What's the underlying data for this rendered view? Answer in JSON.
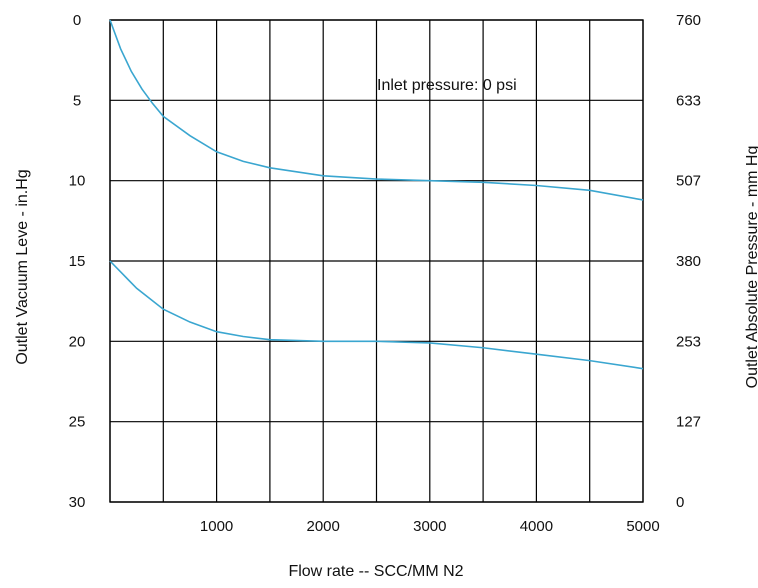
{
  "chart_data": {
    "type": "line",
    "title": "",
    "annotation": "Inlet pressure: 0 psi",
    "xlabel": "Flow rate -- SCC/MM N2",
    "ylabel_left": "Outlet Vacuum Leve - in.Hg",
    "ylabel_right": "Outlet Absolute Pressure - mm Hg",
    "x_range": [
      0,
      5000
    ],
    "x_tick_values": [
      1000,
      2000,
      3000,
      4000,
      5000
    ],
    "x_tick_labels": [
      "1000",
      "2000",
      "3000",
      "4000",
      "5000"
    ],
    "x_grid_values": [
      0,
      500,
      1000,
      1500,
      2000,
      2500,
      3000,
      3500,
      4000,
      4500,
      5000
    ],
    "left_y_range": [
      0,
      30
    ],
    "left_y_inverted": true,
    "left_y_ticks": [
      0,
      5,
      10,
      15,
      20,
      25,
      30
    ],
    "left_y_tick_labels": [
      "0",
      "5",
      "10",
      "15",
      "20",
      "25",
      "30"
    ],
    "right_y_ticks": [
      760,
      633,
      507,
      380,
      253,
      127,
      0
    ],
    "right_y_tick_labels": [
      "760",
      "633",
      "507",
      "380",
      "253",
      "127",
      "0"
    ],
    "grid": true,
    "line_color": "#3aa6d0",
    "series": [
      {
        "x": [
          0,
          100,
          200,
          300,
          400,
          500,
          750,
          1000,
          1250,
          1500,
          2000,
          2500,
          3000,
          3500,
          4000,
          4500,
          5000
        ],
        "y": [
          0.0,
          1.8,
          3.2,
          4.3,
          5.2,
          6.0,
          7.2,
          8.2,
          8.8,
          9.2,
          9.7,
          9.9,
          10.0,
          10.1,
          10.3,
          10.6,
          11.2
        ]
      },
      {
        "x": [
          0,
          250,
          500,
          750,
          1000,
          1250,
          1500,
          2000,
          2500,
          3000,
          3500,
          4000,
          4500,
          5000
        ],
        "y": [
          15.0,
          16.7,
          18.0,
          18.8,
          19.4,
          19.7,
          19.9,
          20.0,
          20.0,
          20.1,
          20.4,
          20.8,
          21.2,
          21.7
        ]
      }
    ]
  }
}
